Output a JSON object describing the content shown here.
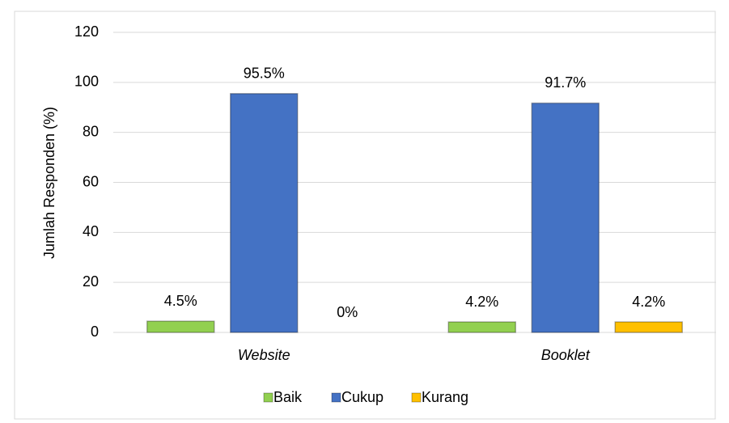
{
  "chart_data": {
    "type": "bar",
    "y_label": "Jumlah Responden (%)",
    "categories": [
      "Website",
      "Booklet"
    ],
    "series": [
      {
        "name": "Baik",
        "color": "#92d050",
        "values": [
          4.5,
          4.2
        ],
        "value_labels": [
          "4.5%",
          "4.2%"
        ]
      },
      {
        "name": "Cukup",
        "color": "#4472c4",
        "values": [
          95.5,
          91.7
        ],
        "value_labels": [
          "95.5%",
          "91.7%"
        ]
      },
      {
        "name": "Kurang",
        "color": "#ffc000",
        "values": [
          0,
          4.2
        ],
        "value_labels": [
          "0%",
          "4.2%"
        ]
      }
    ],
    "ylim": [
      0,
      120
    ],
    "yticks": [
      0,
      20,
      40,
      60,
      80,
      100,
      120
    ],
    "grid": true,
    "legend": "bottom"
  }
}
